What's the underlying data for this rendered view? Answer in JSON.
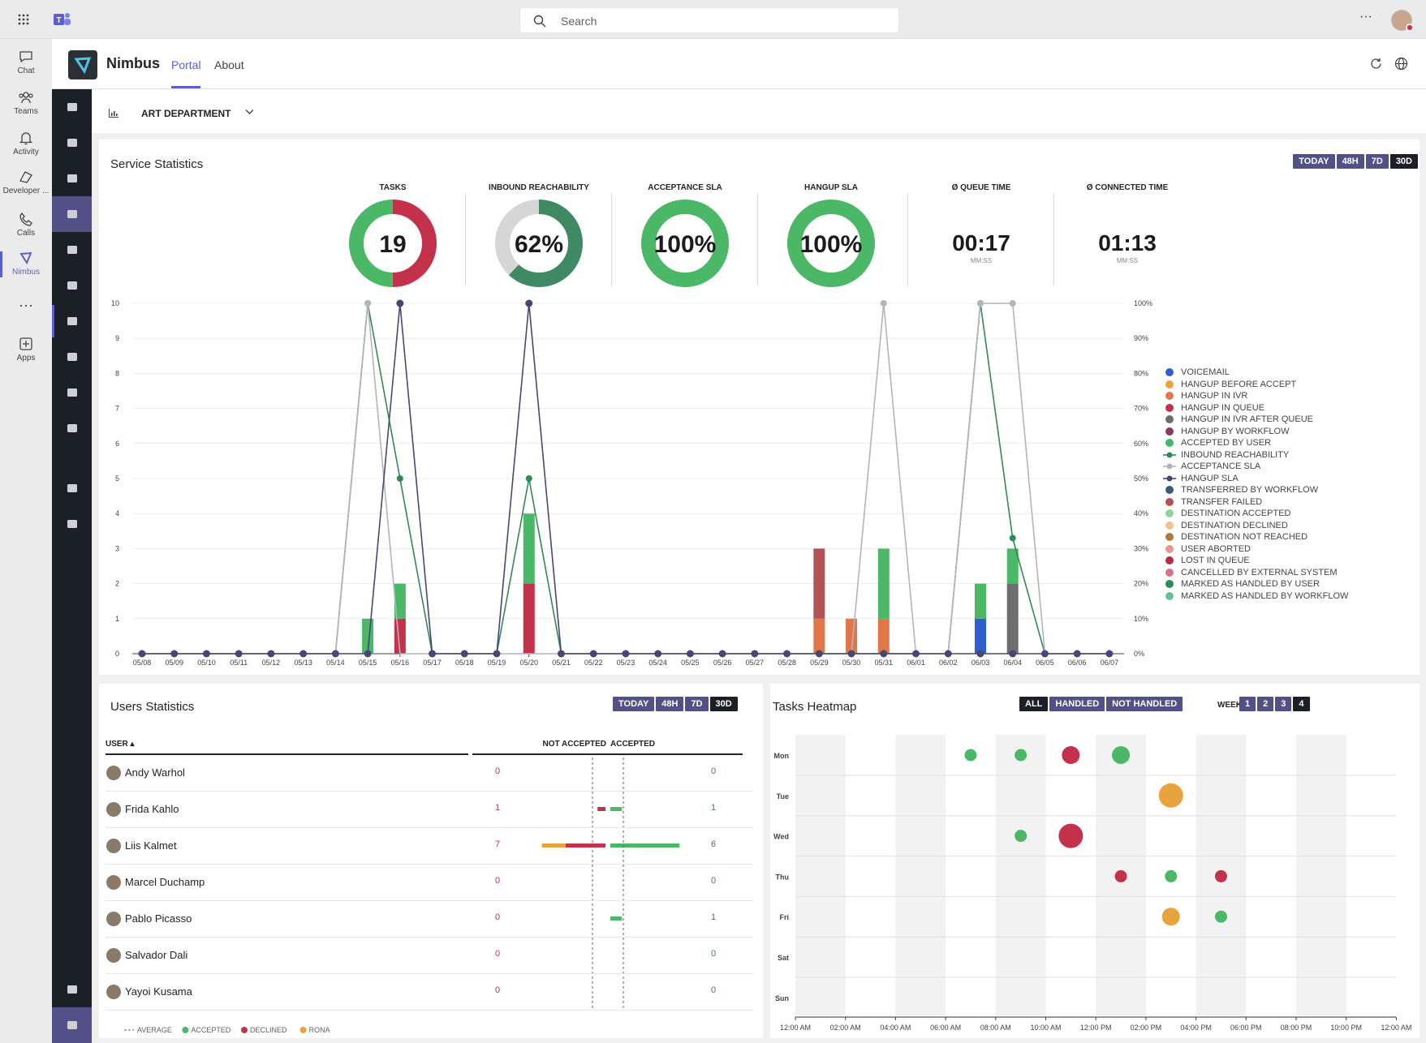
{
  "search": {
    "placeholder": "Search"
  },
  "rail": [
    {
      "label": "Chat",
      "icon": "chat-icon"
    },
    {
      "label": "Teams",
      "icon": "teams-icon"
    },
    {
      "label": "Activity",
      "icon": "bell-icon"
    },
    {
      "label": "Developer ...",
      "icon": "developer-icon"
    },
    {
      "label": "Calls",
      "icon": "phone-icon"
    },
    {
      "label": "Nimbus",
      "icon": "nimbus-icon"
    },
    {
      "label": "Apps",
      "icon": "apps-icon"
    }
  ],
  "app": {
    "name": "Nimbus",
    "tabs": [
      "Portal",
      "About"
    ],
    "active_tab": "Portal"
  },
  "department": "ART DEPARTMENT",
  "service": {
    "title": "Service Statistics",
    "ranges": [
      "TODAY",
      "48H",
      "7D",
      "30D"
    ],
    "active_range": "30D",
    "kpis": [
      {
        "label": "TASKS",
        "value": "19",
        "type": "donut",
        "colors": [
          "#c4314b",
          "#4ab866"
        ],
        "parts": [
          0.5,
          0.5
        ]
      },
      {
        "label": "INBOUND REACHABILITY",
        "value": "62%",
        "type": "donut",
        "colors": [
          "#3f8a63",
          "#d6d6d6"
        ],
        "parts": [
          0.62,
          0.38
        ]
      },
      {
        "label": "ACCEPTANCE SLA",
        "value": "100%",
        "type": "donut",
        "colors": [
          "#4ab866"
        ],
        "parts": [
          1
        ]
      },
      {
        "label": "HANGUP SLA",
        "value": "100%",
        "type": "donut",
        "colors": [
          "#4ab866"
        ],
        "parts": [
          1
        ]
      },
      {
        "label": "Ø QUEUE TIME",
        "value": "00:17",
        "sub": "MM:SS",
        "type": "time"
      },
      {
        "label": "Ø CONNECTED TIME",
        "value": "01:13",
        "sub": "MM:SS",
        "type": "time"
      }
    ]
  },
  "chart_data": {
    "type": "bar",
    "categories": [
      "05/08",
      "05/09",
      "05/10",
      "05/11",
      "05/12",
      "05/13",
      "05/14",
      "05/15",
      "05/16",
      "05/17",
      "05/18",
      "05/19",
      "05/20",
      "05/21",
      "05/22",
      "05/23",
      "05/24",
      "05/25",
      "05/26",
      "05/27",
      "05/28",
      "05/29",
      "05/30",
      "05/31",
      "06/01",
      "06/02",
      "06/03",
      "06/04",
      "06/05",
      "06/06",
      "06/07"
    ],
    "ylim": [
      0,
      10
    ],
    "y2lim": [
      0,
      100
    ],
    "yticks": [
      "0",
      "1",
      "2",
      "3",
      "4",
      "5",
      "6",
      "7",
      "8",
      "9",
      "10"
    ],
    "y2ticks": [
      "0%",
      "10%",
      "20%",
      "30%",
      "40%",
      "50%",
      "60%",
      "70%",
      "80%",
      "90%",
      "100%"
    ],
    "bars": [
      {
        "name": "VOICEMAIL",
        "color": "#2d5fcf",
        "values": [
          0,
          0,
          0,
          0,
          0,
          0,
          0,
          0,
          0,
          0,
          0,
          0,
          0,
          0,
          0,
          0,
          0,
          0,
          0,
          0,
          0,
          0,
          0,
          0,
          0,
          0,
          1,
          0,
          0,
          0,
          0
        ]
      },
      {
        "name": "HANGUP IN IVR",
        "color": "#e07649",
        "values": [
          0,
          0,
          0,
          0,
          0,
          0,
          0,
          0,
          0,
          0,
          0,
          0,
          0,
          0,
          0,
          0,
          0,
          0,
          0,
          0,
          0,
          1,
          1,
          1,
          0,
          0,
          0,
          0,
          0,
          0,
          0
        ]
      },
      {
        "name": "HANGUP IN IVR AFTER QUEUE",
        "color": "#6e6e72",
        "values": [
          0,
          0,
          0,
          0,
          0,
          0,
          0,
          0,
          0,
          0,
          0,
          0,
          0,
          0,
          0,
          0,
          0,
          0,
          0,
          0,
          0,
          0,
          0,
          0,
          0,
          0,
          0,
          2,
          0,
          0,
          0
        ]
      },
      {
        "name": "LOST IN QUEUE",
        "color": "#c4314b",
        "values": [
          0,
          0,
          0,
          0,
          0,
          0,
          0,
          0,
          1,
          0,
          0,
          0,
          2,
          0,
          0,
          0,
          0,
          0,
          0,
          0,
          0,
          0,
          0,
          0,
          0,
          0,
          0,
          0,
          0,
          0,
          0
        ]
      },
      {
        "name": "TRANSFER FAILED",
        "color": "#b05457",
        "values": [
          0,
          0,
          0,
          0,
          0,
          0,
          0,
          0,
          0,
          0,
          0,
          0,
          0,
          0,
          0,
          0,
          0,
          0,
          0,
          0,
          0,
          2,
          0,
          0,
          0,
          0,
          0,
          0,
          0,
          0,
          0
        ]
      },
      {
        "name": "ACCEPTED BY USER",
        "color": "#4ab866",
        "values": [
          0,
          0,
          0,
          0,
          0,
          0,
          0,
          1,
          1,
          0,
          0,
          0,
          2,
          0,
          0,
          0,
          0,
          0,
          0,
          0,
          0,
          0,
          0,
          2,
          0,
          0,
          1,
          1,
          0,
          0,
          0
        ]
      }
    ],
    "lines": [
      {
        "name": "INBOUND REACHABILITY",
        "color": "#2f8a55",
        "values": [
          0,
          0,
          0,
          0,
          0,
          0,
          0,
          100,
          50,
          0,
          0,
          0,
          50,
          0,
          0,
          0,
          0,
          0,
          0,
          0,
          0,
          0,
          0,
          0,
          0,
          0,
          100,
          33,
          0,
          0,
          0
        ]
      },
      {
        "name": "ACCEPTANCE SLA",
        "color": "#b4b4b8",
        "values": [
          0,
          0,
          0,
          0,
          0,
          0,
          0,
          100,
          0,
          0,
          0,
          0,
          0,
          0,
          0,
          0,
          0,
          0,
          0,
          0,
          0,
          0,
          0,
          100,
          0,
          0,
          100,
          100,
          0,
          0,
          0
        ]
      },
      {
        "name": "HANGUP SLA",
        "color": "#464775",
        "values": [
          0,
          0,
          0,
          0,
          0,
          0,
          0,
          0,
          100,
          0,
          0,
          0,
          100,
          0,
          0,
          0,
          0,
          0,
          0,
          0,
          0,
          0,
          0,
          0,
          0,
          0,
          0,
          0,
          0,
          0,
          0
        ]
      }
    ],
    "legend": [
      {
        "name": "VOICEMAIL",
        "color": "#2d5fcf",
        "kind": "dot"
      },
      {
        "name": "HANGUP BEFORE ACCEPT",
        "color": "#e8a33d",
        "kind": "dot"
      },
      {
        "name": "HANGUP IN IVR",
        "color": "#e07649",
        "kind": "dot"
      },
      {
        "name": "HANGUP IN QUEUE",
        "color": "#c4314b",
        "kind": "dot"
      },
      {
        "name": "HANGUP IN IVR AFTER QUEUE",
        "color": "#6e6e72",
        "kind": "dot"
      },
      {
        "name": "HANGUP BY WORKFLOW",
        "color": "#8a3a5f",
        "kind": "dot"
      },
      {
        "name": "ACCEPTED BY USER",
        "color": "#4ab866",
        "kind": "dot"
      },
      {
        "name": "INBOUND REACHABILITY",
        "color": "#2f8a55",
        "kind": "line"
      },
      {
        "name": "ACCEPTANCE SLA",
        "color": "#b4b4b8",
        "kind": "line"
      },
      {
        "name": "HANGUP SLA",
        "color": "#464775",
        "kind": "line"
      },
      {
        "name": "TRANSFERRED BY WORKFLOW",
        "color": "#3d5a6e",
        "kind": "dot"
      },
      {
        "name": "TRANSFER FAILED",
        "color": "#b05457",
        "kind": "dot"
      },
      {
        "name": "DESTINATION ACCEPTED",
        "color": "#8fd69f",
        "kind": "dot"
      },
      {
        "name": "DESTINATION DECLINED",
        "color": "#f2c28f",
        "kind": "dot"
      },
      {
        "name": "DESTINATION NOT REACHED",
        "color": "#b07a3a",
        "kind": "dot"
      },
      {
        "name": "USER ABORTED",
        "color": "#e6998c",
        "kind": "dot"
      },
      {
        "name": "LOST IN QUEUE",
        "color": "#b32d45",
        "kind": "dot"
      },
      {
        "name": "CANCELLED BY EXTERNAL SYSTEM",
        "color": "#d9708a",
        "kind": "dot"
      },
      {
        "name": "MARKED AS HANDLED BY USER",
        "color": "#2d8a55",
        "kind": "dot"
      },
      {
        "name": "MARKED AS HANDLED BY WORKFLOW",
        "color": "#6bbf92",
        "kind": "dot"
      }
    ]
  },
  "users": {
    "title": "Users Statistics",
    "ranges": [
      "TODAY",
      "48H",
      "7D",
      "30D"
    ],
    "active_range": "30D",
    "col_user": "USER",
    "col_not_accepted": "NOT ACCEPTED",
    "col_accepted": "ACCEPTED",
    "rows": [
      {
        "name": "Andy Warhol",
        "not_accepted": "0",
        "accepted": "0",
        "rona": 0,
        "declined": 0,
        "acc": 0
      },
      {
        "name": "Frida Kahlo",
        "not_accepted": "1",
        "accepted": "1",
        "rona": 0,
        "declined": 1,
        "acc": 1
      },
      {
        "name": "Liis Kalmet",
        "not_accepted": "7",
        "accepted": "6",
        "rona": 2,
        "declined": 5,
        "acc": 6
      },
      {
        "name": "Marcel Duchamp",
        "not_accepted": "0",
        "accepted": "0",
        "rona": 0,
        "declined": 0,
        "acc": 0
      },
      {
        "name": "Pablo Picasso",
        "not_accepted": "0",
        "accepted": "1",
        "rona": 0,
        "declined": 0,
        "acc": 1
      },
      {
        "name": "Salvador Dali",
        "not_accepted": "0",
        "accepted": "0",
        "rona": 0,
        "declined": 0,
        "acc": 0
      },
      {
        "name": "Yayoi Kusama",
        "not_accepted": "0",
        "accepted": "0",
        "rona": 0,
        "declined": 0,
        "acc": 0
      }
    ],
    "legend": [
      {
        "name": "AVERAGE",
        "kind": "dash",
        "color": "#616161"
      },
      {
        "name": "ACCEPTED",
        "kind": "dot",
        "color": "#4ab866"
      },
      {
        "name": "DECLINED",
        "kind": "dot",
        "color": "#c4314b"
      },
      {
        "name": "RONA",
        "kind": "dot",
        "color": "#e8a33d"
      }
    ]
  },
  "heatmap": {
    "title": "Tasks Heatmap",
    "filters": [
      "ALL",
      "HANDLED",
      "NOT HANDLED"
    ],
    "active_filter": "ALL",
    "weeks_label": "WEEKS",
    "weeks": [
      "1",
      "2",
      "3",
      "4"
    ],
    "active_week": "4",
    "days": [
      "Mon",
      "Tue",
      "Wed",
      "Thu",
      "Fri",
      "Sat",
      "Sun"
    ],
    "hours": [
      "12:00 AM",
      "02:00 AM",
      "04:00 AM",
      "06:00 AM",
      "08:00 AM",
      "10:00 AM",
      "12:00 PM",
      "02:00 PM",
      "04:00 PM",
      "06:00 PM",
      "08:00 PM",
      "10:00 PM",
      "12:00 AM"
    ],
    "points": [
      {
        "day": 0,
        "hour": 7,
        "size": 1,
        "color": "#4ab866"
      },
      {
        "day": 0,
        "hour": 9,
        "size": 1,
        "color": "#4ab866"
      },
      {
        "day": 0,
        "hour": 11,
        "size": 2,
        "color": "#c4314b"
      },
      {
        "day": 0,
        "hour": 13,
        "size": 2,
        "color": "#4ab866"
      },
      {
        "day": 1,
        "hour": 15,
        "size": 3,
        "color": "#e8a33d"
      },
      {
        "day": 2,
        "hour": 9,
        "size": 1,
        "color": "#4ab866"
      },
      {
        "day": 2,
        "hour": 11,
        "size": 3,
        "color": "#c4314b"
      },
      {
        "day": 3,
        "hour": 13,
        "size": 1,
        "color": "#c4314b"
      },
      {
        "day": 3,
        "hour": 15,
        "size": 1,
        "color": "#4ab866"
      },
      {
        "day": 3,
        "hour": 17,
        "size": 1,
        "color": "#c4314b"
      },
      {
        "day": 4,
        "hour": 15,
        "size": 2,
        "color": "#e8a33d"
      },
      {
        "day": 4,
        "hour": 17,
        "size": 1,
        "color": "#4ab866"
      }
    ]
  }
}
